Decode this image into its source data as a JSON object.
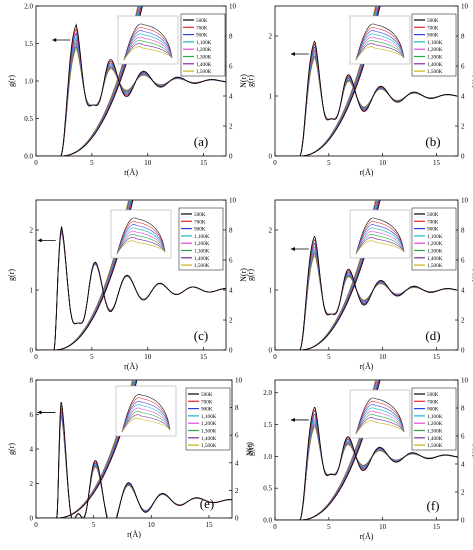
{
  "figure": {
    "series_names": [
      "500K",
      "700K",
      "900K",
      "1,100K",
      "1,200K",
      "1,300K",
      "1,400K",
      "1,500K"
    ],
    "series_colors": [
      "#000000",
      "#e8262a",
      "#2a3fe0",
      "#17b3c9",
      "#e04ad7",
      "#2aa84a",
      "#7a2a9b",
      "#c7b21a"
    ]
  },
  "chart_data": [
    {
      "type": "line",
      "panel_label": "(a)",
      "xlabel": "r(Å)",
      "ylabel": "g(r)",
      "y2label": "N(r)",
      "xlim": [
        0,
        17
      ],
      "ylim": [
        0,
        2.0
      ],
      "y2lim": [
        0,
        10
      ],
      "xticks": [
        0,
        5,
        10,
        15
      ],
      "xtick_labels": [
        "0",
        "5",
        "10",
        "15"
      ],
      "yticks": [
        0,
        0.5,
        1.0,
        1.5,
        2.0
      ],
      "ytick_labels": [
        "0.0",
        "0.5",
        "1.0",
        "1.5",
        "2.0"
      ],
      "y2ticks": [
        0,
        2,
        4,
        6,
        8,
        10
      ],
      "y2tick_labels": [
        "0",
        "2",
        "4",
        "6",
        "8",
        "10"
      ],
      "gr": {
        "r0": 2.2,
        "peak_r": 3.6,
        "peak_heights": [
          1.82,
          1.76,
          1.7,
          1.64,
          1.6,
          1.56,
          1.52,
          1.48
        ],
        "wavelength": 3.05,
        "decay": 3.3,
        "first_min": 0.68
      },
      "nr": {
        "r0": 2.2,
        "k": 0.125
      },
      "inset": true
    },
    {
      "type": "line",
      "panel_label": "(b)",
      "xlabel": "r(Å)",
      "ylabel": "g(r)",
      "y2label": "N(r)",
      "xlim": [
        0,
        17
      ],
      "ylim": [
        0,
        2.5
      ],
      "y2lim": [
        0,
        10
      ],
      "xticks": [
        0,
        5,
        10,
        15
      ],
      "xtick_labels": [
        "0",
        "5",
        "10",
        "15"
      ],
      "yticks": [
        0,
        1,
        2
      ],
      "ytick_labels": [
        "0",
        "1",
        "2"
      ],
      "y2ticks": [
        0,
        2,
        4,
        6,
        8,
        10
      ],
      "y2tick_labels": [
        "0",
        "2",
        "4",
        "6",
        "8",
        "10"
      ],
      "gr": {
        "r0": 2.3,
        "peak_r": 3.7,
        "peak_heights": [
          2.0,
          1.95,
          1.9,
          1.85,
          1.82,
          1.78,
          1.74,
          1.7
        ],
        "wavelength": 3.1,
        "decay": 3.4,
        "first_min": 0.62
      },
      "nr": {
        "r0": 2.3,
        "k": 0.12
      },
      "inset": true
    },
    {
      "type": "line",
      "panel_label": "(c)",
      "xlabel": "r(Å)",
      "ylabel": "g(r)",
      "y2label": "N(r)",
      "xlim": [
        0,
        17
      ],
      "ylim": [
        0,
        2.5
      ],
      "y2lim": [
        0,
        10
      ],
      "xticks": [
        0,
        5,
        10,
        15
      ],
      "xtick_labels": [
        "0",
        "5",
        "10",
        "15"
      ],
      "yticks": [
        0,
        1,
        2
      ],
      "ytick_labels": [
        "0",
        "1",
        "2"
      ],
      "y2ticks": [
        0,
        2,
        4,
        6,
        8,
        10
      ],
      "y2tick_labels": [
        "0",
        "2",
        "4",
        "6",
        "8",
        "10"
      ],
      "gr": {
        "r0": 1.6,
        "peak_r": 2.3,
        "peak_heights": [
          2.15,
          2.13,
          2.11,
          2.1,
          2.09,
          2.08,
          2.07,
          2.06
        ],
        "wavelength": 2.95,
        "decay": 3.8,
        "first_min": 0.45
      },
      "nr": {
        "r0": 1.6,
        "k": 0.135
      },
      "inset": true
    },
    {
      "type": "line",
      "panel_label": "(d)",
      "xlabel": "r(Å)",
      "ylabel": "g(r)",
      "y2label": "N(r)",
      "xlim": [
        0,
        17
      ],
      "ylim": [
        0,
        2.5
      ],
      "y2lim": [
        0,
        10
      ],
      "xticks": [
        0,
        5,
        10,
        15
      ],
      "xtick_labels": [
        "0",
        "5",
        "10",
        "15"
      ],
      "yticks": [
        0,
        1,
        2
      ],
      "ytick_labels": [
        "0",
        "1",
        "2"
      ],
      "y2ticks": [
        0,
        2,
        4,
        6,
        8,
        10
      ],
      "y2tick_labels": [
        "0",
        "2",
        "4",
        "6",
        "8",
        "10"
      ],
      "gr": {
        "r0": 2.3,
        "peak_r": 3.7,
        "peak_heights": [
          1.98,
          1.92,
          1.86,
          1.8,
          1.76,
          1.72,
          1.68,
          1.64
        ],
        "wavelength": 3.1,
        "decay": 3.4,
        "first_min": 0.6
      },
      "nr": {
        "r0": 2.3,
        "k": 0.12
      },
      "inset": true
    },
    {
      "type": "line",
      "panel_label": "(e)",
      "xlabel": "r(Å)",
      "ylabel": "g(r)",
      "y2label": "N(r)",
      "xlim": [
        0,
        17
      ],
      "ylim": [
        0,
        8
      ],
      "y2lim": [
        0,
        10
      ],
      "xticks": [
        0,
        5,
        10,
        15
      ],
      "xtick_labels": [
        "0",
        "5",
        "10",
        "15"
      ],
      "yticks": [
        0,
        2,
        4,
        6,
        8
      ],
      "ytick_labels": [
        "0",
        "2",
        "4",
        "6",
        "8"
      ],
      "y2ticks": [
        0,
        2,
        4,
        6,
        8,
        10
      ],
      "y2tick_labels": [
        "0",
        "2",
        "4",
        "6",
        "8",
        "10"
      ],
      "gr": {
        "r0": 1.8,
        "peak_r": 2.2,
        "peak_heights": [
          7.2,
          7.0,
          6.8,
          6.6,
          6.5,
          6.4,
          6.3,
          6.2
        ],
        "wavelength": 2.95,
        "decay": 3.3,
        "first_min": 0.25
      },
      "nr": {
        "r0": 1.8,
        "k": 0.14
      },
      "inset": true,
      "legend": true
    },
    {
      "type": "line",
      "panel_label": "(f)",
      "xlabel": "r(Å)",
      "ylabel": "g(r)",
      "y2label": "N(r)",
      "xlim": [
        0,
        17
      ],
      "ylim": [
        0,
        2.2
      ],
      "y2lim": [
        0,
        10
      ],
      "xticks": [
        0,
        5,
        10,
        15
      ],
      "xtick_labels": [
        "0",
        "5",
        "10",
        "15"
      ],
      "yticks": [
        0,
        0.5,
        1.0,
        1.5,
        2.0
      ],
      "ytick_labels": [
        "0.0",
        "0.5",
        "1.0",
        "1.5",
        "2.0"
      ],
      "y2ticks": [
        0,
        2,
        4,
        6,
        8,
        10
      ],
      "y2tick_labels": [
        "0",
        "2",
        "4",
        "6",
        "8",
        "10"
      ],
      "gr": {
        "r0": 2.3,
        "peak_r": 3.7,
        "peak_heights": [
          1.85,
          1.8,
          1.74,
          1.68,
          1.64,
          1.6,
          1.56,
          1.52
        ],
        "wavelength": 3.05,
        "decay": 3.4,
        "first_min": 0.72
      },
      "nr": {
        "r0": 2.3,
        "k": 0.12
      },
      "inset": true
    }
  ]
}
